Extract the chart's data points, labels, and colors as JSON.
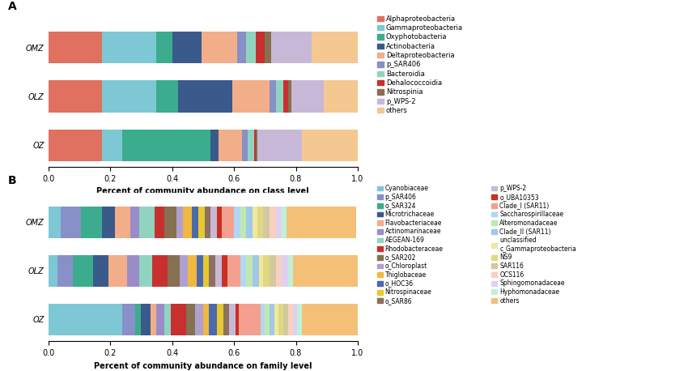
{
  "panel_A": {
    "categories": [
      "OMZ",
      "OLZ",
      "OZ"
    ],
    "legend_labels": [
      "Alphaproteobacteria",
      "Gammaproteobacteria",
      "Oxyphotobacteria",
      "Actinobacteria",
      "Deltaproteobacteria",
      "p_SAR406",
      "Bacteroidia",
      "Dehalococcoidia",
      "Nitrospinia",
      "p_WPS-2",
      "others"
    ],
    "colors": [
      "#E07060",
      "#7DC8D4",
      "#3BAD8E",
      "#3A5A8C",
      "#F2AE88",
      "#8890C8",
      "#90D4C0",
      "#C83030",
      "#857050",
      "#C8B8D8",
      "#F4C890"
    ],
    "bardata": {
      "OMZ": [
        0.175,
        0.175,
        0.05,
        0.095,
        0.115,
        0.03,
        0.03,
        0.03,
        0.02,
        0.13,
        0.15
      ],
      "OLZ": [
        0.175,
        0.175,
        0.07,
        0.175,
        0.12,
        0.02,
        0.025,
        0.015,
        0.01,
        0.105,
        0.11
      ],
      "OZ": [
        0.175,
        0.065,
        0.285,
        0.025,
        0.075,
        0.02,
        0.02,
        0.005,
        0.005,
        0.145,
        0.18
      ]
    },
    "xlabel": "Percent of community abundance on class level",
    "ytick_labels": [
      "OMZ",
      "OLZ",
      "OZ"
    ]
  },
  "panel_B": {
    "categories": [
      "OMZ",
      "OLZ",
      "OZ"
    ],
    "legend_labels_col1": [
      "Cyanobiaceae",
      "p_SAR406",
      "o_SAR324",
      "Microtrichaceae",
      "Flavobacteriaceae",
      "Actinomarinaceae",
      "AEGEAN-169",
      "Rhodobacteraceae",
      "o_SAR202",
      "o_Chloroplast",
      "Thiglobaceae",
      "o_HOC36",
      "Nitrospinaceae",
      "o_SAR86"
    ],
    "legend_labels_col2": [
      "p_WPS-2",
      "o_UBA10353",
      "Clade_I (SAR11)",
      "Saccharospirillaceae",
      "Alteromonadaceae",
      "Clade_II (SAR11)",
      "unclassified\nc_Gammaproteobacteria",
      "NS9",
      "SAR116",
      "OCS116",
      "Sphingomonadaceae",
      "Hyphomonadaceae",
      "others"
    ],
    "colors": [
      "#7DC8D4",
      "#8890C8",
      "#3BAD8E",
      "#3A5A8C",
      "#F2AE88",
      "#9A8CC8",
      "#90D4C0",
      "#C83030",
      "#857050",
      "#B0A0D0",
      "#F0B840",
      "#4A6AAC",
      "#E8C830",
      "#8C7060",
      "#C8B8D8",
      "#C83020",
      "#F4A090",
      "#B0D8F4",
      "#C0E8B0",
      "#A0C8E8",
      "#F0E8A0",
      "#E0D880",
      "#D4C8A0",
      "#F8D0C0",
      "#E0D0F0",
      "#C0F0D8",
      "#F4C078"
    ],
    "bardata": {
      "OMZ": [
        0.04,
        0.065,
        0.07,
        0.04,
        0.05,
        0.03,
        0.05,
        0.03,
        0.04,
        0.02,
        0.03,
        0.02,
        0.02,
        0.02,
        0.02,
        0.015,
        0.04,
        0.02,
        0.02,
        0.02,
        0.015,
        0.02,
        0.02,
        0.02,
        0.02,
        0.015,
        0.225
      ],
      "OLZ": [
        0.03,
        0.05,
        0.065,
        0.05,
        0.06,
        0.04,
        0.04,
        0.05,
        0.04,
        0.025,
        0.03,
        0.02,
        0.02,
        0.02,
        0.02,
        0.02,
        0.04,
        0.02,
        0.02,
        0.02,
        0.015,
        0.02,
        0.02,
        0.02,
        0.02,
        0.015,
        0.275
      ],
      "OZ": [
        0.24,
        0.04,
        0.02,
        0.03,
        0.02,
        0.025,
        0.02,
        0.05,
        0.03,
        0.025,
        0.02,
        0.025,
        0.02,
        0.02,
        0.02,
        0.01,
        0.07,
        0.015,
        0.015,
        0.015,
        0.015,
        0.015,
        0.015,
        0.015,
        0.015,
        0.015,
        0.19
      ]
    },
    "xlabel": "Percent of community abundance on family level",
    "ytick_labels": [
      "OMZ",
      "OLZ",
      "OZ"
    ]
  }
}
